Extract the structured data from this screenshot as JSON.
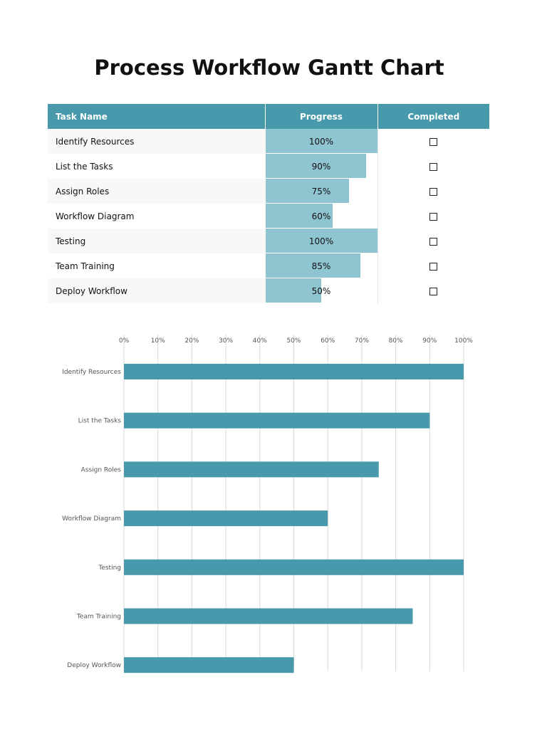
{
  "title": "Process Workflow Gantt Chart",
  "table": {
    "headers": {
      "task_name": "Task Name",
      "progress": "Progress",
      "completed": "Completed"
    },
    "rows": [
      {
        "task": "Identify Resources",
        "progress_label": "100%",
        "progress": 1.0
      },
      {
        "task": "List the Tasks",
        "progress_label": "90%",
        "progress": 0.9
      },
      {
        "task": "Assign Roles",
        "progress_label": "75%",
        "progress": 0.75
      },
      {
        "task": "Workflow Diagram",
        "progress_label": "60%",
        "progress": 0.6
      },
      {
        "task": "Testing",
        "progress_label": "100%",
        "progress": 1.0
      },
      {
        "task": "Team Training",
        "progress_label": "85%",
        "progress": 0.85
      },
      {
        "task": "Deploy Workflow",
        "progress_label": "50%",
        "progress": 0.5
      }
    ]
  },
  "colors": {
    "header": "#4799ab",
    "progress_fill": "#8fc4d1",
    "bar": "#4799ab",
    "grid": "#d9d9d9"
  },
  "chart_data": {
    "type": "bar",
    "orientation": "horizontal",
    "categories": [
      "Identify Resources",
      "List the Tasks",
      "Assign Roles",
      "Workflow Diagram",
      "Testing",
      "Team Training",
      "Deploy Workflow"
    ],
    "values": [
      100,
      90,
      75,
      60,
      100,
      85,
      50
    ],
    "xlim": [
      0,
      100
    ],
    "x_ticks": [
      "0%",
      "10%",
      "20%",
      "30%",
      "40%",
      "50%",
      "60%",
      "70%",
      "80%",
      "90%",
      "100%"
    ],
    "x_axis_position": "top",
    "grid": true,
    "legend": "none"
  }
}
